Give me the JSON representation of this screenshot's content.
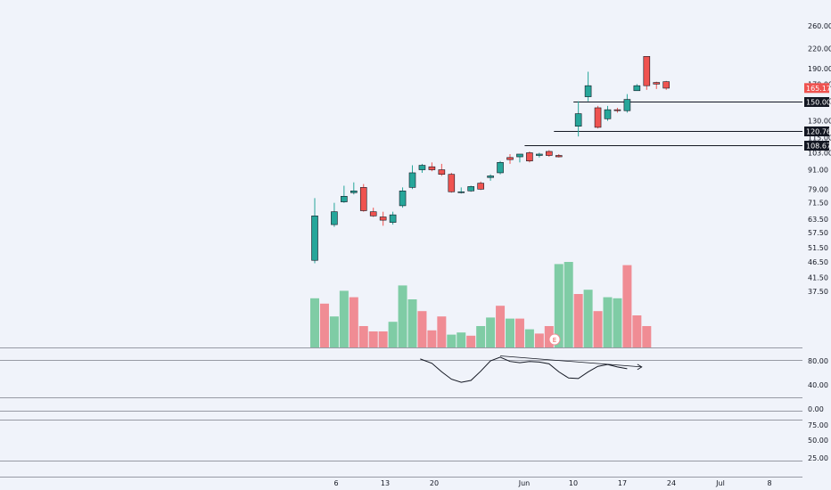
{
  "chart_data": {
    "type": "candlestick",
    "colors": {
      "up": "#26a69a",
      "down": "#ef5350",
      "up_volume": "#7fcca5",
      "down_volume": "#f08c94",
      "background": "#f0f3fa",
      "gridline": "#131722"
    },
    "price_axis": {
      "scale": "log",
      "ticks": [
        "260.00",
        "220.00",
        "190.00",
        "170.00",
        "150.00",
        "130.00",
        "115.00",
        "103.00",
        "91.00",
        "79.00",
        "71.50",
        "63.50",
        "57.50",
        "51.50",
        "46.50",
        "41.50",
        "37.50"
      ]
    },
    "time_axis": {
      "ticks": [
        "6",
        "13",
        "20",
        "Jun",
        "10",
        "17",
        "24",
        "Jul",
        "8"
      ]
    },
    "last_price": "165.17",
    "levels": [
      {
        "label": "150.00",
        "value": 150.0
      },
      {
        "label": "120.76",
        "value": 120.76
      },
      {
        "label": "108.67",
        "value": 108.67
      }
    ],
    "earnings_marker": "E",
    "candles": [
      {
        "x": 0,
        "o": 47,
        "h": 74,
        "l": 46,
        "c": 65
      },
      {
        "x": 2,
        "o": 61,
        "h": 71.5,
        "l": 60,
        "c": 67
      },
      {
        "x": 3,
        "o": 72,
        "h": 81,
        "l": 71.5,
        "c": 75
      },
      {
        "x": 4,
        "o": 77,
        "h": 83,
        "l": 76,
        "c": 78
      },
      {
        "x": 5,
        "o": 80,
        "h": 82,
        "l": 67,
        "c": 67.5
      },
      {
        "x": 6,
        "o": 67,
        "h": 69,
        "l": 64.5,
        "c": 65
      },
      {
        "x": 7,
        "o": 64.5,
        "h": 67,
        "l": 60.5,
        "c": 63
      },
      {
        "x": 8,
        "o": 62,
        "h": 67,
        "l": 61,
        "c": 65.5
      },
      {
        "x": 9,
        "o": 70,
        "h": 80,
        "l": 69,
        "c": 78
      },
      {
        "x": 10,
        "o": 80,
        "h": 94,
        "l": 79,
        "c": 89
      },
      {
        "x": 11,
        "o": 91,
        "h": 95,
        "l": 89,
        "c": 94
      },
      {
        "x": 12,
        "o": 93,
        "h": 96,
        "l": 90,
        "c": 91
      },
      {
        "x": 13,
        "o": 91,
        "h": 95,
        "l": 87,
        "c": 88
      },
      {
        "x": 14,
        "o": 88,
        "h": 89,
        "l": 77,
        "c": 77.5
      },
      {
        "x": 15,
        "o": 77.5,
        "h": 80,
        "l": 76.5,
        "c": 77.5
      },
      {
        "x": 16,
        "o": 78,
        "h": 81,
        "l": 77.5,
        "c": 80.5
      },
      {
        "x": 17,
        "o": 82.5,
        "h": 83.5,
        "l": 78.5,
        "c": 79
      },
      {
        "x": 18,
        "o": 86,
        "h": 88,
        "l": 84,
        "c": 87
      },
      {
        "x": 19,
        "o": 89,
        "h": 97,
        "l": 88,
        "c": 96
      },
      {
        "x": 20,
        "o": 99.5,
        "h": 102,
        "l": 95,
        "c": 98
      },
      {
        "x": 21,
        "o": 100,
        "h": 102,
        "l": 96,
        "c": 102
      },
      {
        "x": 22,
        "o": 103,
        "h": 104,
        "l": 96,
        "c": 97
      },
      {
        "x": 23,
        "o": 101,
        "h": 103,
        "l": 99.5,
        "c": 102
      },
      {
        "x": 24,
        "o": 104,
        "h": 105,
        "l": 100,
        "c": 101
      },
      {
        "x": 25,
        "o": 101,
        "h": 102,
        "l": 99.5,
        "c": 100
      },
      {
        "x": 27,
        "o": 125,
        "h": 150,
        "l": 116,
        "c": 137
      },
      {
        "x": 28,
        "o": 155,
        "h": 186,
        "l": 150,
        "c": 168
      },
      {
        "x": 29,
        "o": 143,
        "h": 145,
        "l": 123,
        "c": 124
      },
      {
        "x": 30,
        "o": 132,
        "h": 145,
        "l": 130,
        "c": 141
      },
      {
        "x": 31,
        "o": 141,
        "h": 143,
        "l": 138,
        "c": 140
      },
      {
        "x": 32,
        "o": 140,
        "h": 158,
        "l": 138,
        "c": 152
      },
      {
        "x": 33,
        "o": 162,
        "h": 170,
        "l": 162,
        "c": 168
      },
      {
        "x": 34,
        "o": 208,
        "h": 208,
        "l": 163,
        "c": 168
      },
      {
        "x": 35,
        "o": 172,
        "h": 173,
        "l": 164,
        "c": 170
      },
      {
        "x": 36,
        "o": 173,
        "h": 174,
        "l": 163,
        "c": 165
      }
    ],
    "volume": [
      {
        "x": 0,
        "v": 0.46,
        "dir": "up"
      },
      {
        "x": 1,
        "v": 0.41,
        "dir": "down"
      },
      {
        "x": 2,
        "v": 0.29,
        "dir": "up"
      },
      {
        "x": 3,
        "v": 0.53,
        "dir": "up"
      },
      {
        "x": 4,
        "v": 0.47,
        "dir": "down"
      },
      {
        "x": 5,
        "v": 0.2,
        "dir": "down"
      },
      {
        "x": 6,
        "v": 0.15,
        "dir": "down"
      },
      {
        "x": 7,
        "v": 0.15,
        "dir": "down"
      },
      {
        "x": 8,
        "v": 0.24,
        "dir": "up"
      },
      {
        "x": 9,
        "v": 0.58,
        "dir": "up"
      },
      {
        "x": 10,
        "v": 0.45,
        "dir": "up"
      },
      {
        "x": 11,
        "v": 0.34,
        "dir": "down"
      },
      {
        "x": 12,
        "v": 0.16,
        "dir": "down"
      },
      {
        "x": 13,
        "v": 0.29,
        "dir": "down"
      },
      {
        "x": 14,
        "v": 0.12,
        "dir": "up"
      },
      {
        "x": 15,
        "v": 0.14,
        "dir": "up"
      },
      {
        "x": 16,
        "v": 0.11,
        "dir": "down"
      },
      {
        "x": 17,
        "v": 0.2,
        "dir": "up"
      },
      {
        "x": 18,
        "v": 0.28,
        "dir": "up"
      },
      {
        "x": 19,
        "v": 0.39,
        "dir": "down"
      },
      {
        "x": 20,
        "v": 0.27,
        "dir": "up"
      },
      {
        "x": 21,
        "v": 0.27,
        "dir": "down"
      },
      {
        "x": 22,
        "v": 0.17,
        "dir": "up"
      },
      {
        "x": 23,
        "v": 0.13,
        "dir": "down"
      },
      {
        "x": 24,
        "v": 0.2,
        "dir": "down"
      },
      {
        "x": 25,
        "v": 0.78,
        "dir": "up"
      },
      {
        "x": 26,
        "v": 0.8,
        "dir": "up"
      },
      {
        "x": 27,
        "v": 0.5,
        "dir": "down"
      },
      {
        "x": 28,
        "v": 0.54,
        "dir": "up"
      },
      {
        "x": 29,
        "v": 0.34,
        "dir": "down"
      },
      {
        "x": 30,
        "v": 0.47,
        "dir": "up"
      },
      {
        "x": 31,
        "v": 0.46,
        "dir": "up"
      },
      {
        "x": 32,
        "v": 0.77,
        "dir": "down"
      },
      {
        "x": 33,
        "v": 0.3,
        "dir": "down"
      },
      {
        "x": 34,
        "v": 0.2,
        "dir": "down"
      }
    ],
    "oscillator_1": {
      "ticks": [
        "80.00",
        "40.00",
        "0.00"
      ],
      "line": [
        {
          "x": 10.8,
          "y": 83
        },
        {
          "x": 12,
          "y": 76
        },
        {
          "x": 13,
          "y": 62
        },
        {
          "x": 14,
          "y": 50
        },
        {
          "x": 15,
          "y": 45
        },
        {
          "x": 16,
          "y": 48
        },
        {
          "x": 17,
          "y": 63
        },
        {
          "x": 18,
          "y": 80
        },
        {
          "x": 19,
          "y": 86
        },
        {
          "x": 20,
          "y": 79
        },
        {
          "x": 21,
          "y": 77
        },
        {
          "x": 22,
          "y": 79
        },
        {
          "x": 23,
          "y": 78
        },
        {
          "x": 24,
          "y": 75
        },
        {
          "x": 25,
          "y": 62
        },
        {
          "x": 26,
          "y": 52
        },
        {
          "x": 27,
          "y": 51
        },
        {
          "x": 28,
          "y": 62
        },
        {
          "x": 29,
          "y": 71
        },
        {
          "x": 30,
          "y": 74
        },
        {
          "x": 31,
          "y": 70
        },
        {
          "x": 32,
          "y": 67
        }
      ],
      "trendline": [
        {
          "x": 19,
          "y": 88
        },
        {
          "x": 33.5,
          "y": 70
        }
      ]
    },
    "oscillator_2": {
      "ticks": [
        "75.00",
        "50.00",
        "25.00"
      ]
    }
  }
}
